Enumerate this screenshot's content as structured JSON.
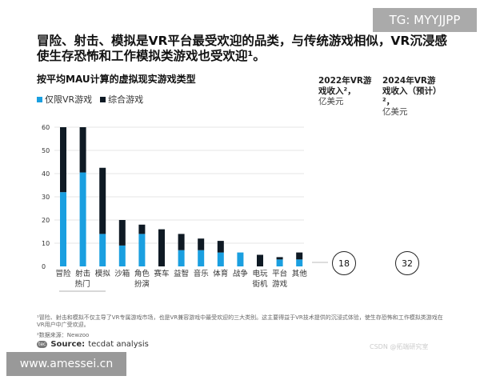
{
  "title": "冒险、射击、模拟是VR平台最受欢迎的品类，与传统游戏相似，VR沉浸感使生存恐怖和工作模拟类游戏也受欢迎¹。",
  "colors": {
    "vr_only": "#1a9fe0",
    "combined": "#0f1a24"
  },
  "revenue": {
    "col1": {
      "header": "2022年VR游戏收入²，",
      "unit": "亿美元",
      "value": "18"
    },
    "col2": {
      "header": "2024年VR游戏收入（预计）²，",
      "unit": "亿美元",
      "value": "32"
    }
  },
  "chart_data": {
    "type": "bar",
    "stacked": true,
    "title": "按平均MAU计算的虚拟现实游戏类型",
    "categories": [
      "冒险",
      "射击",
      "模拟",
      "沙箱",
      "角色\n扮演",
      "赛车",
      "益智",
      "音乐",
      "体育",
      "战争",
      "电玩\n街机",
      "平台\n游戏",
      "其他"
    ],
    "group_label": "热门",
    "series": [
      {
        "name": "仅限VR游戏",
        "values": [
          32,
          40.5,
          14,
          9,
          14,
          0,
          7,
          7,
          6,
          6,
          0,
          3,
          3
        ]
      },
      {
        "name": "综合游戏",
        "values": [
          28,
          19.5,
          28.5,
          11,
          4,
          16,
          7,
          5,
          5,
          0,
          5,
          1,
          3
        ]
      }
    ],
    "yticks": [
      0,
      10,
      20,
      30,
      40,
      50,
      60
    ],
    "ylim": [
      0,
      60
    ],
    "grid": true,
    "legend": "top-left"
  },
  "footnotes": {
    "note1": "¹冒险、射击和模拟不仅主导了VR专属游戏市场，也是VR兼容游戏中最受欢迎的三大类别。这主要得益于VR技术提供的沉浸式体验，使生存恐怖和工作模拟类游戏在VR用户中广受欢迎。",
    "note2": "²数据来源：Newzoo",
    "source_label": "Source:",
    "source": "tecdat analysis",
    "logo": "tecdat",
    "csdn": "CSDN @拓端研究室"
  },
  "watermarks": {
    "tg": "TG: MYYJJPP",
    "site": "www.amessei.cn"
  }
}
